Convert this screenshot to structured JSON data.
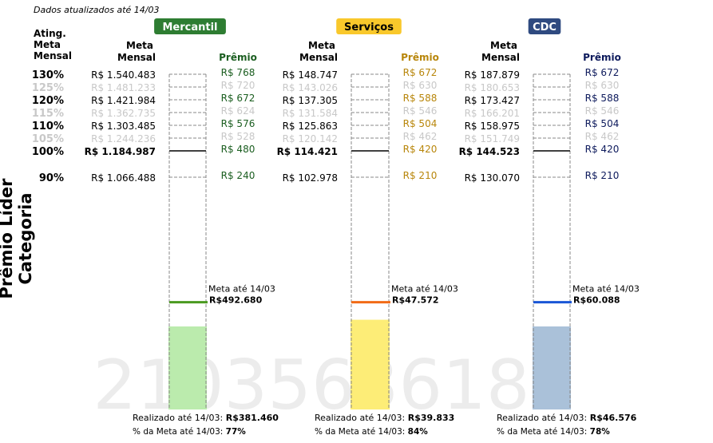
{
  "chart_data": {
    "type": "bar",
    "title": "Prêmio Líder Categoria",
    "updated_note": "Dados atualizados até 14/03",
    "watermark": "2103563618",
    "left_header": [
      "Ating.",
      "Meta",
      "Mensal"
    ],
    "levels": [
      {
        "label": "130%",
        "pct": 130,
        "active": true
      },
      {
        "label": "125%",
        "pct": 125,
        "active": false
      },
      {
        "label": "120%",
        "pct": 120,
        "active": true
      },
      {
        "label": "115%",
        "pct": 115,
        "active": false
      },
      {
        "label": "110%",
        "pct": 110,
        "active": true
      },
      {
        "label": "105%",
        "pct": 105,
        "active": false
      },
      {
        "label": "100%",
        "pct": 100,
        "active": true
      },
      {
        "label": "90%",
        "pct": 90,
        "active": true
      }
    ],
    "meta_header": [
      "Meta",
      "Mensal"
    ],
    "premio_header": "Prêmio",
    "categories": [
      {
        "name": "Mercantil",
        "badge_color": "#2e7d32",
        "text_color": "#1b5e20",
        "bar_color": "#bbebad",
        "line_color": "#4a9a20",
        "metas": [
          "R$ 1.540.483",
          "R$ 1.481.233",
          "R$ 1.421.984",
          "R$ 1.362.735",
          "R$ 1.303.485",
          "R$ 1.244.236",
          "R$ 1.184.987",
          "R$ 1.066.488"
        ],
        "premios": [
          "R$ 768",
          "R$ 720",
          "R$ 672",
          "R$ 624",
          "R$ 576",
          "R$ 528",
          "R$ 480",
          "R$ 240"
        ],
        "meta_ate_label": "Meta até 14/03",
        "meta_ate_value": "R$492.680",
        "meta_ate_pct": 41.6,
        "realizado_label": "Realizado até 14/03: ",
        "realizado_value": "R$381.460",
        "pct_label": "% da Meta até 14/03: ",
        "pct_value": "77%",
        "realizado_pct": 32.2
      },
      {
        "name": "Serviços",
        "badge_color": "#f9c82b",
        "text_color": "#b8860b",
        "bar_color": "#fded77",
        "line_color": "#f26b16",
        "metas": [
          "R$ 148.747",
          "R$ 143.026",
          "R$ 137.305",
          "R$ 131.584",
          "R$ 125.863",
          "R$ 120.142",
          "R$ 114.421",
          "R$ 102.978"
        ],
        "premios": [
          "R$ 672",
          "R$ 630",
          "R$ 588",
          "R$ 546",
          "R$ 504",
          "R$ 462",
          "R$ 420",
          "R$ 210"
        ],
        "meta_ate_label": "Meta até 14/03",
        "meta_ate_value": "R$47.572",
        "meta_ate_pct": 41.6,
        "realizado_label": "Realizado até 14/03: ",
        "realizado_value": "R$39.833",
        "pct_label": "% da Meta até 14/03: ",
        "pct_value": "84%",
        "realizado_pct": 34.8
      },
      {
        "name": "CDC",
        "badge_color": "#2f4a80",
        "text_color": "#0d1a5c",
        "bar_color": "#aac1d9",
        "line_color": "#1a56d6",
        "metas": [
          "R$ 187.879",
          "R$ 180.653",
          "R$ 173.427",
          "R$ 166.201",
          "R$ 158.975",
          "R$ 151.749",
          "R$ 144.523",
          "R$ 130.070"
        ],
        "premios": [
          "R$ 672",
          "R$ 630",
          "R$ 588",
          "R$ 546",
          "R$ 504",
          "R$ 462",
          "R$ 420",
          "R$ 210"
        ],
        "meta_ate_label": "Meta até 14/03",
        "meta_ate_value": "R$60.088",
        "meta_ate_pct": 41.6,
        "realizado_label": "Realizado até 14/03: ",
        "realizado_value": "R$46.576",
        "pct_label": "% da Meta até 14/03: ",
        "pct_value": "78%",
        "realizado_pct": 32.2
      }
    ],
    "inactive_color": "#c8c8c8"
  }
}
